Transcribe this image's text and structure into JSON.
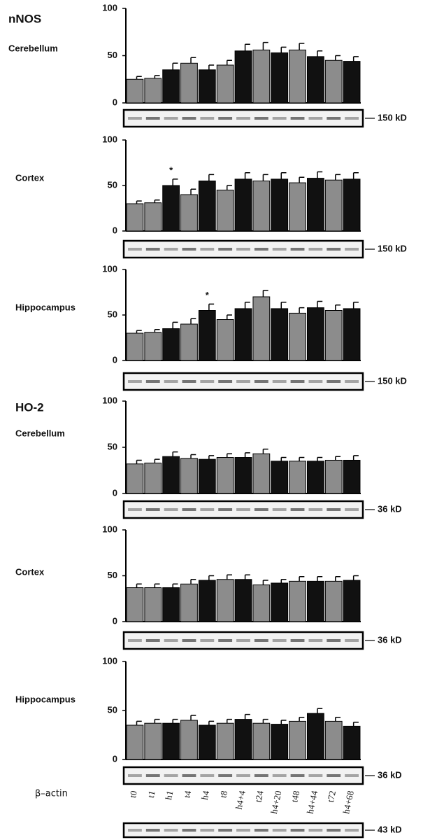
{
  "chart_data": [
    {
      "type": "bar",
      "group": "nNOS",
      "label": "Cerebellum",
      "blot_label": "150 kD",
      "categories": [
        null,
        null,
        null,
        null,
        null,
        null,
        null,
        null,
        null,
        null,
        null,
        null,
        null
      ],
      "values": [
        25,
        26,
        35,
        42,
        35,
        40,
        55,
        56,
        53,
        56,
        49,
        45,
        44
      ],
      "errors": [
        3,
        3,
        7,
        6,
        5,
        5,
        7,
        8,
        6,
        7,
        6,
        5,
        5
      ],
      "colors": [
        "#8c8c8c",
        "#8c8c8c",
        "#111111",
        "#8c8c8c",
        "#111111",
        "#8c8c8c",
        "#111111",
        "#8c8c8c",
        "#111111",
        "#8c8c8c",
        "#111111",
        "#8c8c8c",
        "#111111"
      ],
      "ylim": [
        0,
        100
      ],
      "yticks": [
        0,
        50,
        100
      ]
    },
    {
      "type": "bar",
      "label": "Cortex",
      "blot_label": "150 kD",
      "categories": [
        null,
        null,
        null,
        null,
        null,
        null,
        null,
        null,
        null,
        null,
        null,
        null,
        null
      ],
      "values": [
        30,
        31,
        50,
        40,
        55,
        45,
        57,
        55,
        57,
        53,
        58,
        56,
        57
      ],
      "errors": [
        3,
        3,
        7,
        6,
        7,
        5,
        7,
        7,
        7,
        6,
        7,
        6,
        7
      ],
      "colors": [
        "#8c8c8c",
        "#8c8c8c",
        "#111111",
        "#8c8c8c",
        "#111111",
        "#8c8c8c",
        "#111111",
        "#8c8c8c",
        "#111111",
        "#8c8c8c",
        "#111111",
        "#8c8c8c",
        "#111111"
      ],
      "annotations": [
        {
          "text": "*",
          "index": 2
        }
      ],
      "ylim": [
        0,
        100
      ],
      "yticks": [
        0,
        50,
        100
      ]
    },
    {
      "type": "bar",
      "label": "Hippocampus",
      "blot_label": "150 kD",
      "categories": [
        null,
        null,
        null,
        null,
        null,
        null,
        null,
        null,
        null,
        null,
        null,
        null,
        null
      ],
      "values": [
        30,
        31,
        35,
        40,
        55,
        45,
        57,
        70,
        57,
        52,
        58,
        55,
        57
      ],
      "errors": [
        3,
        3,
        7,
        6,
        7,
        5,
        7,
        7,
        7,
        6,
        7,
        6,
        7
      ],
      "colors": [
        "#8c8c8c",
        "#8c8c8c",
        "#111111",
        "#8c8c8c",
        "#111111",
        "#8c8c8c",
        "#111111",
        "#8c8c8c",
        "#111111",
        "#8c8c8c",
        "#111111",
        "#8c8c8c",
        "#111111"
      ],
      "annotations": [
        {
          "text": "*",
          "index": 4
        }
      ],
      "ylim": [
        0,
        100
      ],
      "yticks": [
        0,
        50,
        100
      ]
    },
    {
      "type": "bar",
      "group": "HO-2",
      "label": "Cerebellum",
      "blot_label": "36 kD",
      "categories": [
        null,
        null,
        null,
        null,
        null,
        null,
        null,
        null,
        null,
        null,
        null,
        null,
        null
      ],
      "values": [
        32,
        33,
        40,
        38,
        37,
        39,
        39,
        43,
        35,
        35,
        35,
        36,
        36
      ],
      "errors": [
        4,
        4,
        5,
        4,
        4,
        4,
        5,
        5,
        4,
        4,
        4,
        4,
        5
      ],
      "colors": [
        "#8c8c8c",
        "#8c8c8c",
        "#111111",
        "#8c8c8c",
        "#111111",
        "#8c8c8c",
        "#111111",
        "#8c8c8c",
        "#111111",
        "#8c8c8c",
        "#111111",
        "#8c8c8c",
        "#111111"
      ],
      "ylim": [
        0,
        100
      ],
      "yticks": [
        0,
        50,
        100
      ]
    },
    {
      "type": "bar",
      "label": "Cortex",
      "blot_label": "36 kD",
      "categories": [
        null,
        null,
        null,
        null,
        null,
        null,
        null,
        null,
        null,
        null,
        null,
        null,
        null
      ],
      "values": [
        37,
        37,
        37,
        41,
        45,
        46,
        46,
        40,
        42,
        44,
        44,
        44,
        45
      ],
      "errors": [
        4,
        4,
        4,
        5,
        5,
        5,
        5,
        5,
        4,
        5,
        5,
        5,
        5
      ],
      "colors": [
        "#8c8c8c",
        "#8c8c8c",
        "#111111",
        "#8c8c8c",
        "#111111",
        "#8c8c8c",
        "#111111",
        "#8c8c8c",
        "#111111",
        "#8c8c8c",
        "#111111",
        "#8c8c8c",
        "#111111"
      ],
      "ylim": [
        0,
        100
      ],
      "yticks": [
        0,
        50,
        100
      ]
    },
    {
      "type": "bar",
      "label": "Hippocampus",
      "blot_label": "36 kD",
      "categories": [
        "t0",
        "t1",
        "h1",
        "t4",
        "h4",
        "t8",
        "h4+4",
        "t24",
        "h4+20",
        "t48",
        "h4+44",
        "t72",
        "h4+68"
      ],
      "values": [
        35,
        37,
        37,
        40,
        35,
        37,
        41,
        37,
        36,
        39,
        47,
        39,
        34
      ],
      "errors": [
        4,
        4,
        4,
        5,
        4,
        4,
        5,
        4,
        4,
        4,
        5,
        4,
        4
      ],
      "colors": [
        "#8c8c8c",
        "#8c8c8c",
        "#111111",
        "#8c8c8c",
        "#111111",
        "#8c8c8c",
        "#111111",
        "#8c8c8c",
        "#111111",
        "#8c8c8c",
        "#111111",
        "#8c8c8c",
        "#111111"
      ],
      "ylim": [
        0,
        100
      ],
      "yticks": [
        0,
        50,
        100
      ],
      "control_label": "β–actin",
      "control_blot_label": "43 kD"
    }
  ]
}
